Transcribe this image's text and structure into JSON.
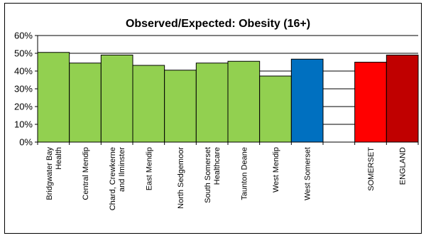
{
  "chart_data": {
    "type": "bar",
    "title": "Observed/Expected: Obesity (16+)",
    "xlabel": "",
    "ylabel": "",
    "ylim": [
      0,
      0.6
    ],
    "yticks": [
      "0%",
      "10%",
      "20%",
      "30%",
      "40%",
      "50%",
      "60%"
    ],
    "ytick_values": [
      0,
      0.1,
      0.2,
      0.3,
      0.4,
      0.5,
      0.6
    ],
    "grid": true,
    "legend": "none",
    "categories": [
      [
        "Bridgwater Bay",
        "Health"
      ],
      [
        "Central Mendip"
      ],
      [
        "Chard, Crewkerne",
        "and Ilminster"
      ],
      [
        "East Mendip"
      ],
      [
        "North Sedgemoor"
      ],
      [
        "South Somerset",
        "Healthcare"
      ],
      [
        "Taunton Deane"
      ],
      [
        "West Mendip"
      ],
      [
        "West Somerset"
      ],
      [],
      [
        "SOMERSET"
      ],
      [
        "ENGLAND"
      ]
    ],
    "values": [
      0.505,
      0.445,
      0.49,
      0.432,
      0.405,
      0.445,
      0.455,
      0.372,
      0.467,
      null,
      0.45,
      0.49
    ],
    "colors": [
      "#92d050",
      "#92d050",
      "#92d050",
      "#92d050",
      "#92d050",
      "#92d050",
      "#92d050",
      "#92d050",
      "#0070c0",
      null,
      "#ff0000",
      "#c00000"
    ]
  }
}
